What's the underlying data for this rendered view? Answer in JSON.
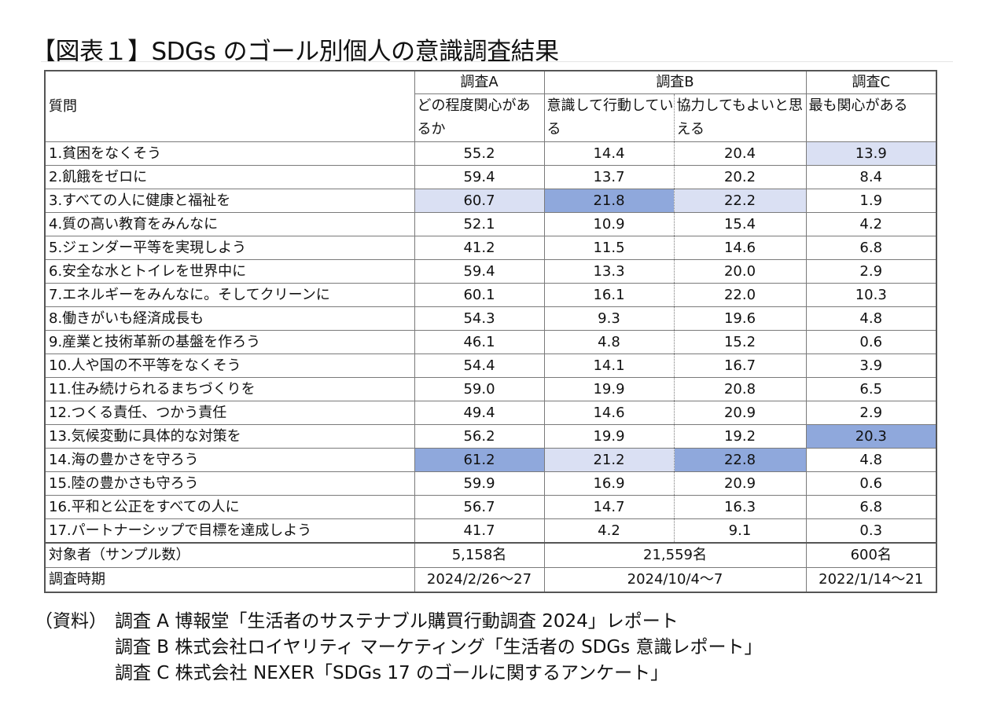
{
  "title": "【図表１】SDGs のゴール別個人の意識調査結果",
  "table": {
    "question_header": "質問",
    "survey_a": {
      "name": "調査A",
      "col": "どの程度関心があるか"
    },
    "survey_b": {
      "name": "調査B",
      "col1": "意識して行動している",
      "col2": "協力してもよいと思える"
    },
    "survey_c": {
      "name": "調査C",
      "col": "最も関心がある"
    },
    "rows": [
      {
        "q": "1.貧困をなくそう",
        "a": "55.2",
        "b1": "14.4",
        "b2": "20.4",
        "c": "13.9"
      },
      {
        "q": "2.飢餓をゼロに",
        "a": "59.4",
        "b1": "13.7",
        "b2": "20.2",
        "c": "8.4"
      },
      {
        "q": "3.すべての人に健康と福祉を",
        "a": "60.7",
        "b1": "21.8",
        "b2": "22.2",
        "c": "1.9"
      },
      {
        "q": "4.質の高い教育をみんなに",
        "a": "52.1",
        "b1": "10.9",
        "b2": "15.4",
        "c": "4.2"
      },
      {
        "q": "5.ジェンダー平等を実現しよう",
        "a": "41.2",
        "b1": "11.5",
        "b2": "14.6",
        "c": "6.8"
      },
      {
        "q": "6.安全な水とトイレを世界中に",
        "a": "59.4",
        "b1": "13.3",
        "b2": "20.0",
        "c": "2.9"
      },
      {
        "q": "7.エネルギーをみんなに。そしてクリーンに",
        "a": "60.1",
        "b1": "16.1",
        "b2": "22.0",
        "c": "10.3"
      },
      {
        "q": "8.働きがいも経済成長も",
        "a": "54.3",
        "b1": "9.3",
        "b2": "19.6",
        "c": "4.8"
      },
      {
        "q": "9.産業と技術革新の基盤を作ろう",
        "a": "46.1",
        "b1": "4.8",
        "b2": "15.2",
        "c": "0.6"
      },
      {
        "q": "10.人や国の不平等をなくそう",
        "a": "54.4",
        "b1": "14.1",
        "b2": "16.7",
        "c": "3.9"
      },
      {
        "q": "11.住み続けられるまちづくりを",
        "a": "59.0",
        "b1": "19.9",
        "b2": "20.8",
        "c": "6.5"
      },
      {
        "q": "12.つくる責任、つかう責任",
        "a": "49.4",
        "b1": "14.6",
        "b2": "20.9",
        "c": "2.9"
      },
      {
        "q": "13.気候変動に具体的な対策を",
        "a": "56.2",
        "b1": "19.9",
        "b2": "19.2",
        "c": "20.3"
      },
      {
        "q": "14.海の豊かさを守ろう",
        "a": "61.2",
        "b1": "21.2",
        "b2": "22.8",
        "c": "4.8"
      },
      {
        "q": "15.陸の豊かさも守ろう",
        "a": "59.9",
        "b1": "16.9",
        "b2": "20.9",
        "c": "0.6"
      },
      {
        "q": "16.平和と公正をすべての人に",
        "a": "56.7",
        "b1": "14.7",
        "b2": "16.3",
        "c": "6.8"
      },
      {
        "q": "17.パートナーシップで目標を達成しよう",
        "a": "41.7",
        "b1": "4.2",
        "b2": "9.1",
        "c": "0.3"
      }
    ],
    "sample_label": "対象者（サンプル数）",
    "sample_a": "5,158名",
    "sample_b": "21,559名",
    "sample_c": "600名",
    "period_label": "調査時期",
    "period_a": "2024/2/26～27",
    "period_b": "2024/10/4～7",
    "period_c": "2022/1/14～21",
    "highlight_colors": {
      "light": "#dae0f3",
      "dark": "#8fa8dc"
    }
  },
  "notes": {
    "label": "（資料）",
    "line1": "調査 A 博報堂「生活者のサステナブル購買行動調査 2024」レポート",
    "line2": "調査 B 株式会社ロイヤリティ マーケティング「生活者の SDGs 意識レポート」",
    "line3": "調査 C 株式会社 NEXER「SDGs 17 のゴールに関するアンケート」"
  }
}
